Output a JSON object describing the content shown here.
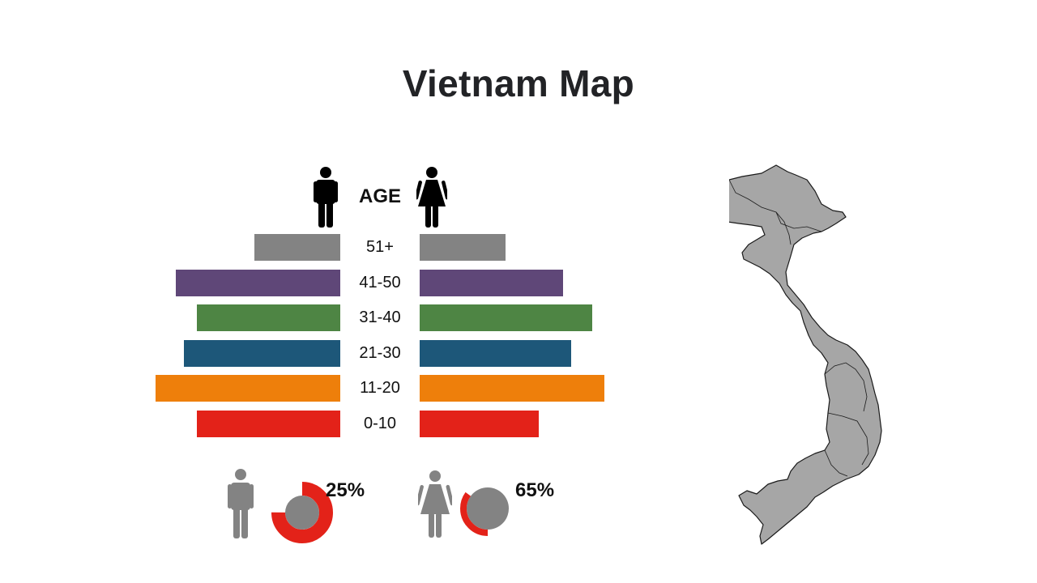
{
  "title": "Vietnam Map",
  "age_header": "AGE",
  "colors": {
    "bar_51_plus": "#838383",
    "bar_41_50": "#5f4778",
    "bar_31_40": "#4e8544",
    "bar_21_30": "#1d5779",
    "bar_11_20": "#ee7f0b",
    "bar_0_10": "#e32219",
    "donut_accent": "#e32219",
    "donut_base": "#838383",
    "map_fill": "#a6a6a6",
    "map_stroke": "#1a1a1a"
  },
  "icons": {
    "male_header": "male-person-icon",
    "female_header": "female-person-icon",
    "male_footer": "male-person-icon",
    "female_footer": "female-person-icon",
    "map": "vietnam-map"
  },
  "chart_data": [
    {
      "type": "bar",
      "orientation": "horizontal-diverging",
      "categories": [
        "51+",
        "41-50",
        "31-40",
        "21-30",
        "11-20",
        "0-10"
      ],
      "series": [
        {
          "side": "left",
          "icon": "male-person-icon",
          "values": [
            21,
            40,
            35,
            38,
            45,
            35
          ]
        },
        {
          "side": "right",
          "icon": "female-person-icon",
          "values": [
            21,
            35,
            42,
            37,
            45,
            29
          ]
        }
      ],
      "title": "",
      "xlabel": "",
      "ylabel": "AGE",
      "xlim": [
        0,
        45
      ],
      "grid": false
    },
    {
      "type": "pie",
      "subtype": "donut",
      "icon": "male-person-icon",
      "value_label": "25%",
      "value": 25
    },
    {
      "type": "pie",
      "subtype": "donut",
      "icon": "female-person-icon",
      "value_label": "65%",
      "value": 65
    }
  ]
}
